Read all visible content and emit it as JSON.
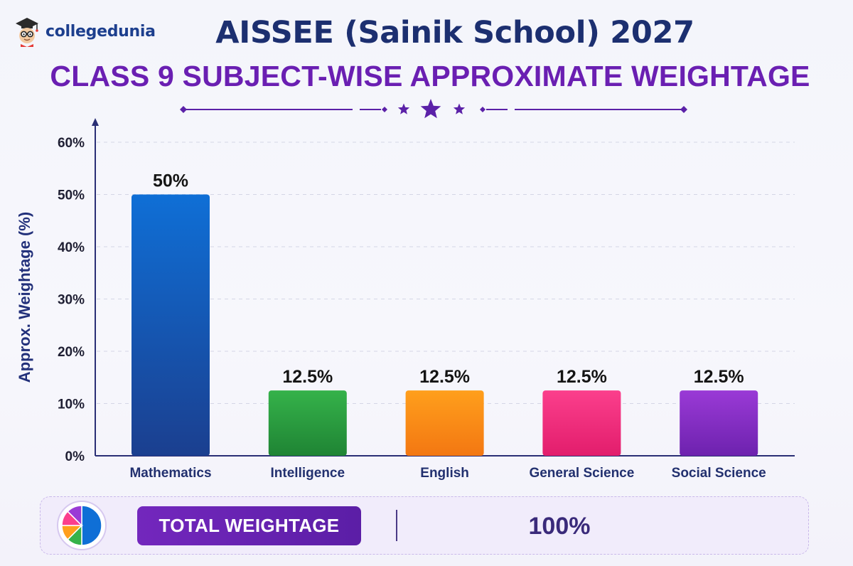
{
  "brand": {
    "name": "collegedunia"
  },
  "header": {
    "title": "AISSEE (Sainik School) 2027",
    "subtitle": "CLASS 9 SUBJECT-WISE APPROXIMATE WEIGHTAGE"
  },
  "chart_data": {
    "type": "bar",
    "ylabel": "Approx. Weightage (%)",
    "xlabel": "",
    "ylim": [
      0,
      60
    ],
    "yticks": [
      0,
      10,
      20,
      30,
      40,
      50,
      60
    ],
    "ytick_suffix": "%",
    "grid": true,
    "categories": [
      "Mathematics",
      "Intelligence",
      "English",
      "General Science",
      "Social Science"
    ],
    "values": [
      50,
      12.5,
      12.5,
      12.5,
      12.5
    ],
    "data_labels": [
      "50%",
      "12.5%",
      "12.5%",
      "12.5%",
      "12.5%"
    ],
    "colors": [
      [
        "#0f6fd6",
        "#1b3f8f"
      ],
      [
        "#35b24a",
        "#1f8434"
      ],
      [
        "#ff9f1c",
        "#f37712"
      ],
      [
        "#fb3f8c",
        "#e21d6c"
      ],
      [
        "#9a3ad6",
        "#6d22ae"
      ]
    ]
  },
  "footer": {
    "label": "TOTAL WEIGHTAGE",
    "value": "100%"
  },
  "colors": {
    "title": "#1c2f70",
    "subtitle": "#6a1fb2",
    "axis": "#2a2f75",
    "accent": "#6a1fb2"
  }
}
